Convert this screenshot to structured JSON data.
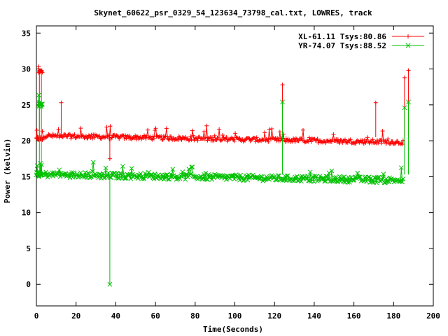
{
  "chart_data": {
    "type": "line",
    "title": "Skynet_60622_psr_0329_54_123634_73798_cal.txt, LOWRES, track",
    "xlabel": "Time(Seconds)",
    "ylabel": "Power (kelvin)",
    "xlim": [
      0,
      200
    ],
    "ylim": [
      -3,
      36
    ],
    "xticks": [
      0,
      20,
      40,
      60,
      80,
      100,
      120,
      140,
      160,
      180,
      200
    ],
    "yticks": [
      0,
      5,
      10,
      15,
      20,
      25,
      30,
      35
    ],
    "grid": false,
    "legend_position": "top-right",
    "series": [
      {
        "name": "XL-61.11 Tsys:80.86",
        "color": "#ff0000",
        "marker": "plus",
        "segments": [
          {
            "x": [
              0,
              3
            ],
            "base": 20.3,
            "noise": 0.3
          },
          {
            "x": [
              1,
              3
            ],
            "base": 29.6,
            "noise": 0.3
          },
          {
            "x": [
              3,
              185
            ],
            "base_start": 20.7,
            "base_end": 19.8,
            "noise": 0.3
          }
        ],
        "notable_points": [
          {
            "x": 0.3,
            "y": 20.3
          },
          {
            "x": 1.5,
            "y": 29.7
          },
          {
            "x": 2.5,
            "y": 29.8
          },
          {
            "x": 12.5,
            "y": 25.3
          },
          {
            "x": 37,
            "y": 17.5
          },
          {
            "x": 124,
            "y": 27.8
          },
          {
            "x": 171,
            "y": 25.3
          },
          {
            "x": 185.5,
            "y": 28.8
          },
          {
            "x": 187.5,
            "y": 29.8
          }
        ]
      },
      {
        "name": "YR-74.07 Tsys:88.52",
        "color": "#00c000",
        "marker": "cross",
        "segments": [
          {
            "x": [
              0,
              3
            ],
            "base": 15.3,
            "noise": 0.3
          },
          {
            "x": [
              1,
              3
            ],
            "base": 25.0,
            "noise": 0.3
          },
          {
            "x": [
              3,
              185
            ],
            "base_start": 15.3,
            "base_end": 14.5,
            "noise": 0.4
          }
        ],
        "notable_points": [
          {
            "x": 0.3,
            "y": 15.5
          },
          {
            "x": 1.5,
            "y": 25.2
          },
          {
            "x": 2.5,
            "y": 25.0
          },
          {
            "x": 37,
            "y": 0.0
          },
          {
            "x": 124,
            "y": 25.4
          },
          {
            "x": 185.5,
            "y": 24.6
          },
          {
            "x": 187.5,
            "y": 25.4
          }
        ]
      }
    ]
  }
}
